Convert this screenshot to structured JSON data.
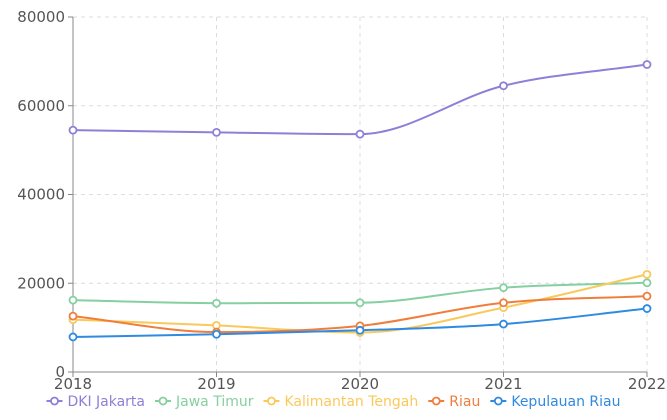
{
  "chart_data": {
    "type": "line",
    "title": "",
    "xlabel": "",
    "ylabel": "",
    "x": [
      "2018",
      "2019",
      "2020",
      "2021",
      "2022"
    ],
    "ylim": [
      0,
      80000
    ],
    "yticks": [
      "0",
      "20000",
      "40000",
      "60000",
      "80000"
    ],
    "grid": true,
    "legend_position": "bottom",
    "series": [
      {
        "name": "DKI Jakarta",
        "color": "#8f7fd6",
        "values": [
          54500,
          54000,
          53600,
          64500,
          69300
        ]
      },
      {
        "name": "Jawa Timur",
        "color": "#86cfa0",
        "values": [
          16200,
          15500,
          15600,
          19000,
          20100
        ]
      },
      {
        "name": "Kalimantan Tengah",
        "color": "#f9c95c",
        "values": [
          11800,
          10500,
          8900,
          14500,
          22000
        ]
      },
      {
        "name": "Riau",
        "color": "#ef7e3d",
        "values": [
          12600,
          9000,
          10400,
          15600,
          17100
        ]
      },
      {
        "name": "Kepulauan Riau",
        "color": "#2f8ae0",
        "values": [
          7900,
          8500,
          9400,
          10800,
          14300
        ]
      }
    ]
  }
}
